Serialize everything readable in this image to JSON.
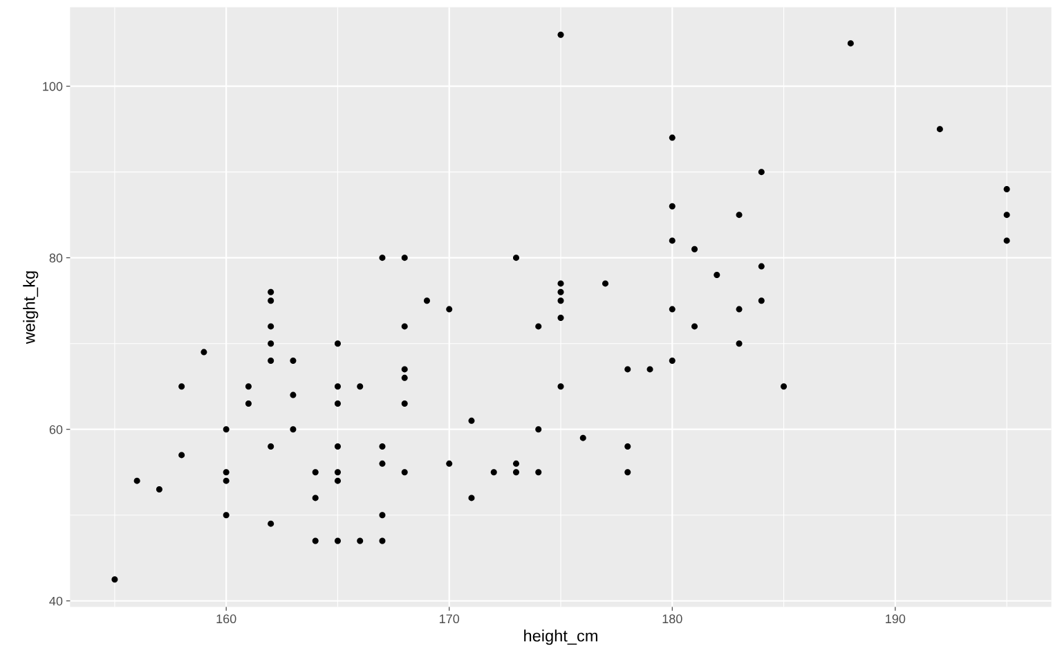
{
  "chart_data": {
    "type": "scatter",
    "xlabel": "height_cm",
    "ylabel": "weight_kg",
    "xlim": [
      153,
      197
    ],
    "ylim": [
      39.3,
      109.2
    ],
    "xticks": [
      160,
      170,
      180,
      190
    ],
    "yticks": [
      40,
      60,
      80,
      100
    ],
    "grid": true,
    "marker": "circle",
    "series": [
      {
        "color": "#000000",
        "x": [
          155,
          156,
          157,
          158,
          158,
          159,
          160,
          160,
          160,
          160,
          161,
          161,
          162,
          162,
          162,
          162,
          162,
          162,
          162,
          163,
          163,
          163,
          164,
          164,
          164,
          165,
          165,
          165,
          165,
          165,
          165,
          165,
          166,
          166,
          167,
          167,
          167,
          167,
          167,
          168,
          168,
          168,
          168,
          168,
          168,
          169,
          170,
          170,
          171,
          171,
          172,
          173,
          173,
          173,
          174,
          174,
          174,
          175,
          175,
          175,
          175,
          175,
          175,
          176,
          177,
          178,
          178,
          178,
          179,
          180,
          180,
          180,
          180,
          180,
          181,
          181,
          182,
          183,
          183,
          183,
          184,
          184,
          184,
          185,
          188,
          192,
          195,
          195,
          195
        ],
        "values": [
          42.5,
          54,
          53,
          65,
          57,
          69,
          60,
          55,
          54,
          50,
          65,
          63,
          76,
          75,
          72,
          70,
          68,
          58,
          49,
          68,
          64,
          60,
          55,
          52,
          47,
          70,
          65,
          63,
          58,
          55,
          54,
          47,
          65,
          47,
          80,
          58,
          56,
          50,
          47,
          80,
          72,
          67,
          66,
          63,
          55,
          75,
          74,
          56,
          61,
          52,
          55,
          80,
          56,
          55,
          72,
          60,
          55,
          106,
          77,
          76,
          75,
          73,
          65,
          59,
          77,
          67,
          58,
          55,
          67,
          94,
          86,
          82,
          74,
          68,
          81,
          72,
          78,
          85,
          74,
          70,
          90,
          79,
          75,
          65,
          105,
          95,
          88,
          85,
          82
        ]
      }
    ]
  }
}
